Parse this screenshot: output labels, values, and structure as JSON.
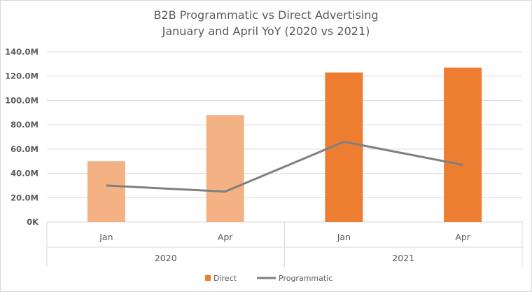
{
  "chart_data": {
    "type": "bar+line",
    "title": [
      "B2B Programmatic vs Direct Advertising",
      "January and April YoY (2020 vs 2021)"
    ],
    "categories": [
      "Jan",
      "Apr",
      "Jan",
      "Apr"
    ],
    "groups": [
      {
        "label": "2020",
        "span": 2
      },
      {
        "label": "2021",
        "span": 2
      }
    ],
    "series": [
      {
        "name": "Direct",
        "kind": "bar",
        "values": [
          50,
          88,
          123,
          127
        ],
        "colors": [
          "#f4b183",
          "#f4b183",
          "#ed7d31",
          "#ed7d31"
        ],
        "legend_color": "#ed7d31"
      },
      {
        "name": "Programmatic",
        "kind": "line",
        "values": [
          30,
          25,
          66,
          47
        ],
        "color": "#808080"
      }
    ],
    "unit": "M",
    "ylim": [
      0,
      140
    ],
    "yticks": [
      "0K",
      "20.0M",
      "40.0M",
      "60.0M",
      "80.0M",
      "100.0M",
      "120.0M",
      "140.0M"
    ],
    "grid": true,
    "legend": "bottom"
  }
}
